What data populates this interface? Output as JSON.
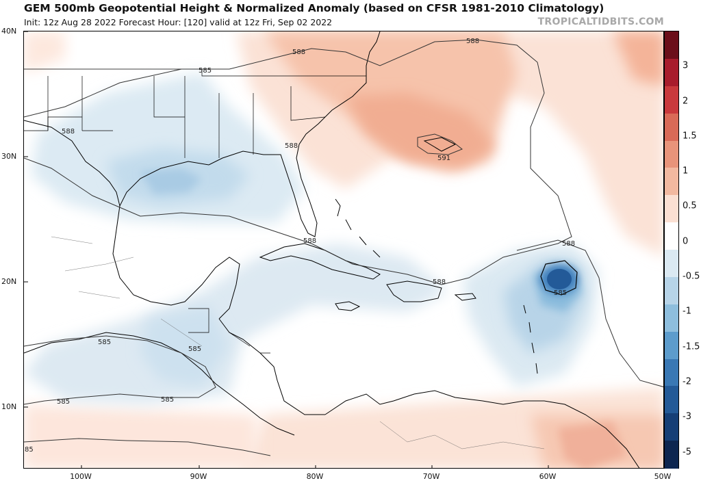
{
  "header": {
    "title": "GEM 500mb Geopotential Height & Normalized Anomaly (based on CFSR 1981-2010 Climatology)",
    "subtitle": "Init: 12z Aug 28 2022   Forecast Hour: [120]   valid at 12z Fri, Sep 02 2022",
    "brand": "TROPICALTIDBITS.COM"
  },
  "map": {
    "lat_labels": [
      "40N",
      "30N",
      "20N",
      "10N"
    ],
    "lon_labels": [
      "100W",
      "90W",
      "80W",
      "70W",
      "60W",
      "50W"
    ],
    "contour_labels": [
      "588",
      "588",
      "585",
      "588",
      "588",
      "591",
      "588",
      "588",
      "588",
      "585",
      "585",
      "585",
      "585",
      "585",
      "85"
    ]
  },
  "colorbar": {
    "labels": [
      "3",
      "2",
      "1.5",
      "1",
      "0.5",
      "0",
      "-0.5",
      "-1",
      "-1.5",
      "-2",
      "-3",
      "-5"
    ],
    "colors": [
      "#6b0f1a",
      "#a81c2c",
      "#c9393c",
      "#d96a57",
      "#e8947a",
      "#f2b9a0",
      "#fbe0d3",
      "#ffffff",
      "#dbe9f2",
      "#b7d4e8",
      "#8ebedd",
      "#5d9ccc",
      "#3a78b4",
      "#245a97",
      "#163f76",
      "#0d2650"
    ]
  }
}
